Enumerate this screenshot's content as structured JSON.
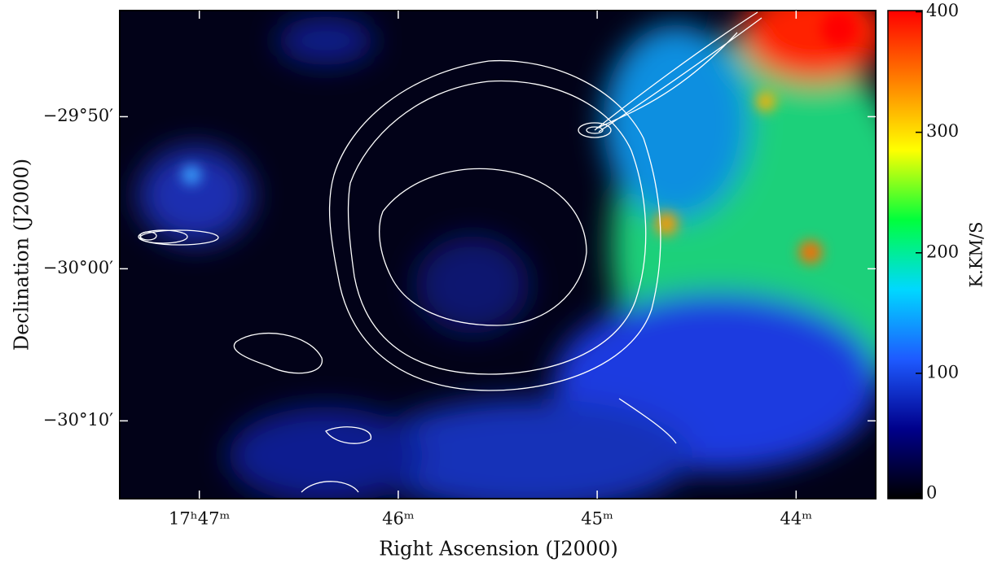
{
  "chart_data": {
    "type": "image",
    "x_label": "Right Ascension (J2000)",
    "y_label": "Declination (J2000)",
    "xlim": [
      47.4,
      43.6
    ],
    "xticks": [
      {
        "value": 47,
        "label": "17ʰ47ᵐ"
      },
      {
        "value": 46,
        "label": "46ᵐ"
      },
      {
        "value": 45,
        "label": "45ᵐ"
      },
      {
        "value": 44,
        "label": "44ᵐ"
      }
    ],
    "ylim": [
      -30.252,
      -29.717
    ],
    "yticks": [
      {
        "value": -29.8333,
        "label": "−29°50′"
      },
      {
        "value": -30,
        "label": "−30°00′"
      },
      {
        "value": -30.1667,
        "label": "−30°10′"
      }
    ],
    "colorbar": {
      "label": "K.KM/S",
      "lim": [
        -4,
        401
      ],
      "ticks": [
        0,
        100,
        200,
        300,
        400
      ],
      "colors": [
        "#000000",
        "#00008b",
        "#1e5aff",
        "#00d8ff",
        "#00ff3c",
        "#ffff00",
        "#ff7f00",
        "#ff0000"
      ]
    }
  }
}
